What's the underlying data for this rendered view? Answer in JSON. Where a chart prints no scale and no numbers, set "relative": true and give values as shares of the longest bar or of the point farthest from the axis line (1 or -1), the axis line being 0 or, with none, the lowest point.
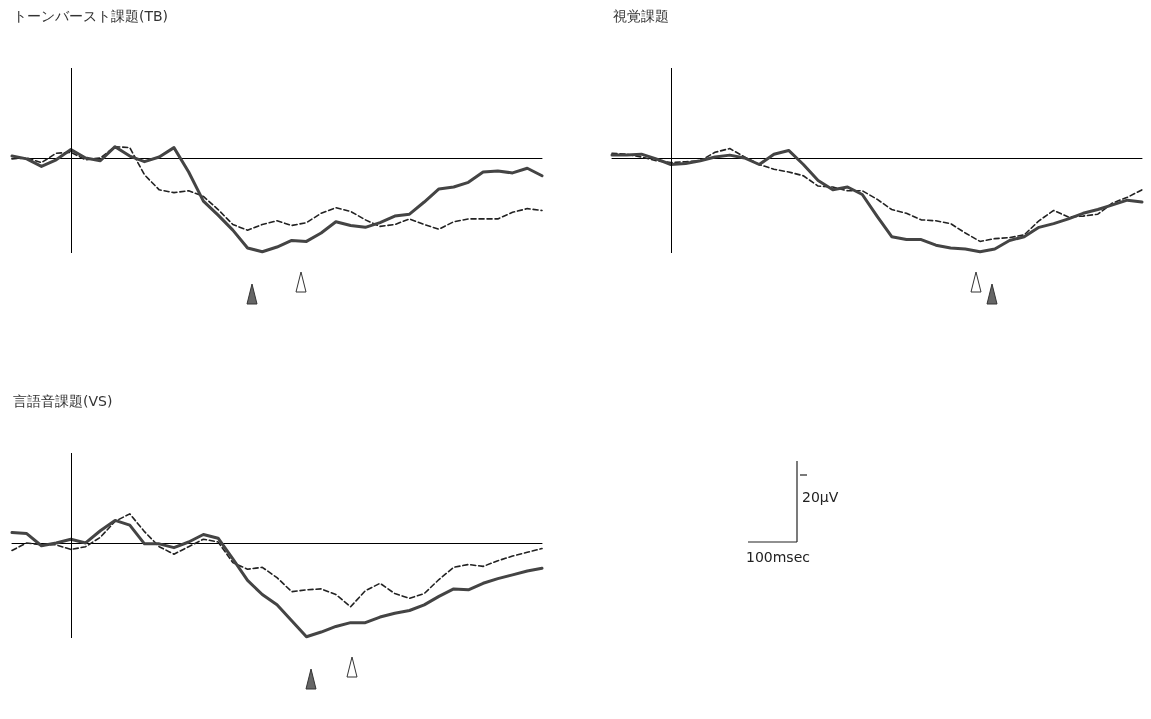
{
  "chart_data": [
    {
      "type": "line",
      "title": "トーンバースト課題(TB)",
      "relative": true,
      "marker": "none",
      "categories": [
        null,
        null,
        null,
        null,
        null,
        null,
        null,
        null,
        null,
        null,
        null,
        null,
        null,
        null,
        null,
        null,
        null,
        null,
        null,
        null,
        null,
        null,
        null,
        null,
        null,
        null,
        null,
        null,
        null,
        null,
        null,
        null,
        null,
        null,
        null,
        null,
        null
      ],
      "series": [
        {
          "color": "#444444",
          "line_style": "solid",
          "values": [
            0.02,
            -0.01,
            -0.09,
            -0.02,
            0.09,
            0.0,
            -0.03,
            0.12,
            0.02,
            -0.04,
            0.01,
            0.11,
            -0.15,
            -0.46,
            -0.61,
            -0.77,
            -0.96,
            -1,
            -0.95,
            -0.88,
            -0.89,
            -0.8,
            -0.68,
            -0.72,
            -0.74,
            -0.69,
            -0.62,
            -0.6,
            -0.47,
            -0.33,
            -0.31,
            -0.26,
            -0.15,
            -0.14,
            -0.16,
            -0.11,
            -0.19
          ]
        },
        {
          "color": "#222222",
          "line_style": "dashed",
          "values": [
            -0.01,
            0,
            -0.05,
            0.05,
            0.06,
            -0.02,
            0,
            0.12,
            0.11,
            -0.18,
            -0.34,
            -0.37,
            -0.35,
            -0.41,
            -0.55,
            -0.71,
            -0.77,
            -0.71,
            -0.67,
            -0.72,
            -0.69,
            -0.59,
            -0.53,
            -0.57,
            -0.66,
            -0.73,
            -0.71,
            -0.65,
            -0.71,
            -0.76,
            -0.68,
            -0.65,
            -0.65,
            -0.65,
            -0.58,
            -0.54,
            -0.56
          ]
        }
      ]
    },
    {
      "type": "line",
      "title": "視覚課題",
      "relative": true,
      "marker": "none",
      "categories": [
        null,
        null,
        null,
        null,
        null,
        null,
        null,
        null,
        null,
        null,
        null,
        null,
        null,
        null,
        null,
        null,
        null,
        null,
        null,
        null,
        null,
        null,
        null,
        null,
        null,
        null,
        null,
        null,
        null,
        null,
        null,
        null,
        null,
        null,
        null,
        null,
        null
      ],
      "series": [
        {
          "color": "#444444",
          "line_style": "solid",
          "values": [
            0.03,
            0.03,
            0.04,
            -0.01,
            -0.07,
            -0.06,
            -0.03,
            0.01,
            0.03,
            0,
            -0.07,
            0.04,
            0.08,
            -0.07,
            -0.24,
            -0.34,
            -0.31,
            -0.39,
            -0.62,
            -0.84,
            -0.87,
            -0.87,
            -0.93,
            -0.96,
            -0.97,
            -1,
            -0.97,
            -0.88,
            -0.84,
            -0.74,
            -0.7,
            -0.65,
            -0.59,
            -0.55,
            -0.5,
            -0.45,
            -0.47
          ]
        },
        {
          "color": "#222222",
          "line_style": "dashed",
          "values": [
            0.05,
            0.04,
            0.01,
            -0.03,
            -0.05,
            -0.04,
            -0.03,
            0.06,
            0.1,
            0.01,
            -0.07,
            -0.12,
            -0.15,
            -0.19,
            -0.3,
            -0.31,
            -0.35,
            -0.35,
            -0.44,
            -0.55,
            -0.59,
            -0.66,
            -0.67,
            -0.7,
            -0.8,
            -0.89,
            -0.86,
            -0.85,
            -0.82,
            -0.67,
            -0.56,
            -0.63,
            -0.62,
            -0.6,
            -0.48,
            -0.42,
            -0.34
          ]
        }
      ]
    },
    {
      "type": "line",
      "title": "言語音課題(VS)",
      "relative": true,
      "marker": "none",
      "categories": [
        null,
        null,
        null,
        null,
        null,
        null,
        null,
        null,
        null,
        null,
        null,
        null,
        null,
        null,
        null,
        null,
        null,
        null,
        null,
        null,
        null,
        null,
        null,
        null,
        null,
        null,
        null,
        null,
        null,
        null,
        null,
        null,
        null,
        null,
        null,
        null,
        null
      ],
      "annotations": [
        "20μV",
        "100msec"
      ],
      "series": [
        {
          "color": "#444444",
          "line_style": "solid",
          "values": [
            0.11,
            0.1,
            -0.03,
            0,
            0.04,
            0,
            0.13,
            0.24,
            0.19,
            -0.01,
            -0.01,
            -0.05,
            0.01,
            0.09,
            0.05,
            -0.17,
            -0.4,
            -0.55,
            -0.66,
            -0.83,
            -1,
            -0.95,
            -0.89,
            -0.85,
            -0.85,
            -0.79,
            -0.75,
            -0.72,
            -0.66,
            -0.57,
            -0.49,
            -0.5,
            -0.43,
            -0.38,
            -0.34,
            -0.3,
            -0.27
          ]
        },
        {
          "color": "#222222",
          "line_style": "dashed",
          "values": [
            -0.08,
            0,
            -0.02,
            -0.02,
            -0.07,
            -0.04,
            0.06,
            0.23,
            0.31,
            0.12,
            -0.04,
            -0.12,
            -0.04,
            0.04,
            0.01,
            -0.21,
            -0.28,
            -0.26,
            -0.37,
            -0.52,
            -0.5,
            -0.49,
            -0.55,
            -0.68,
            -0.51,
            -0.43,
            -0.54,
            -0.59,
            -0.54,
            -0.39,
            -0.26,
            -0.23,
            -0.25,
            -0.19,
            -0.14,
            -0.1,
            -0.06
          ]
        }
      ]
    }
  ]
}
